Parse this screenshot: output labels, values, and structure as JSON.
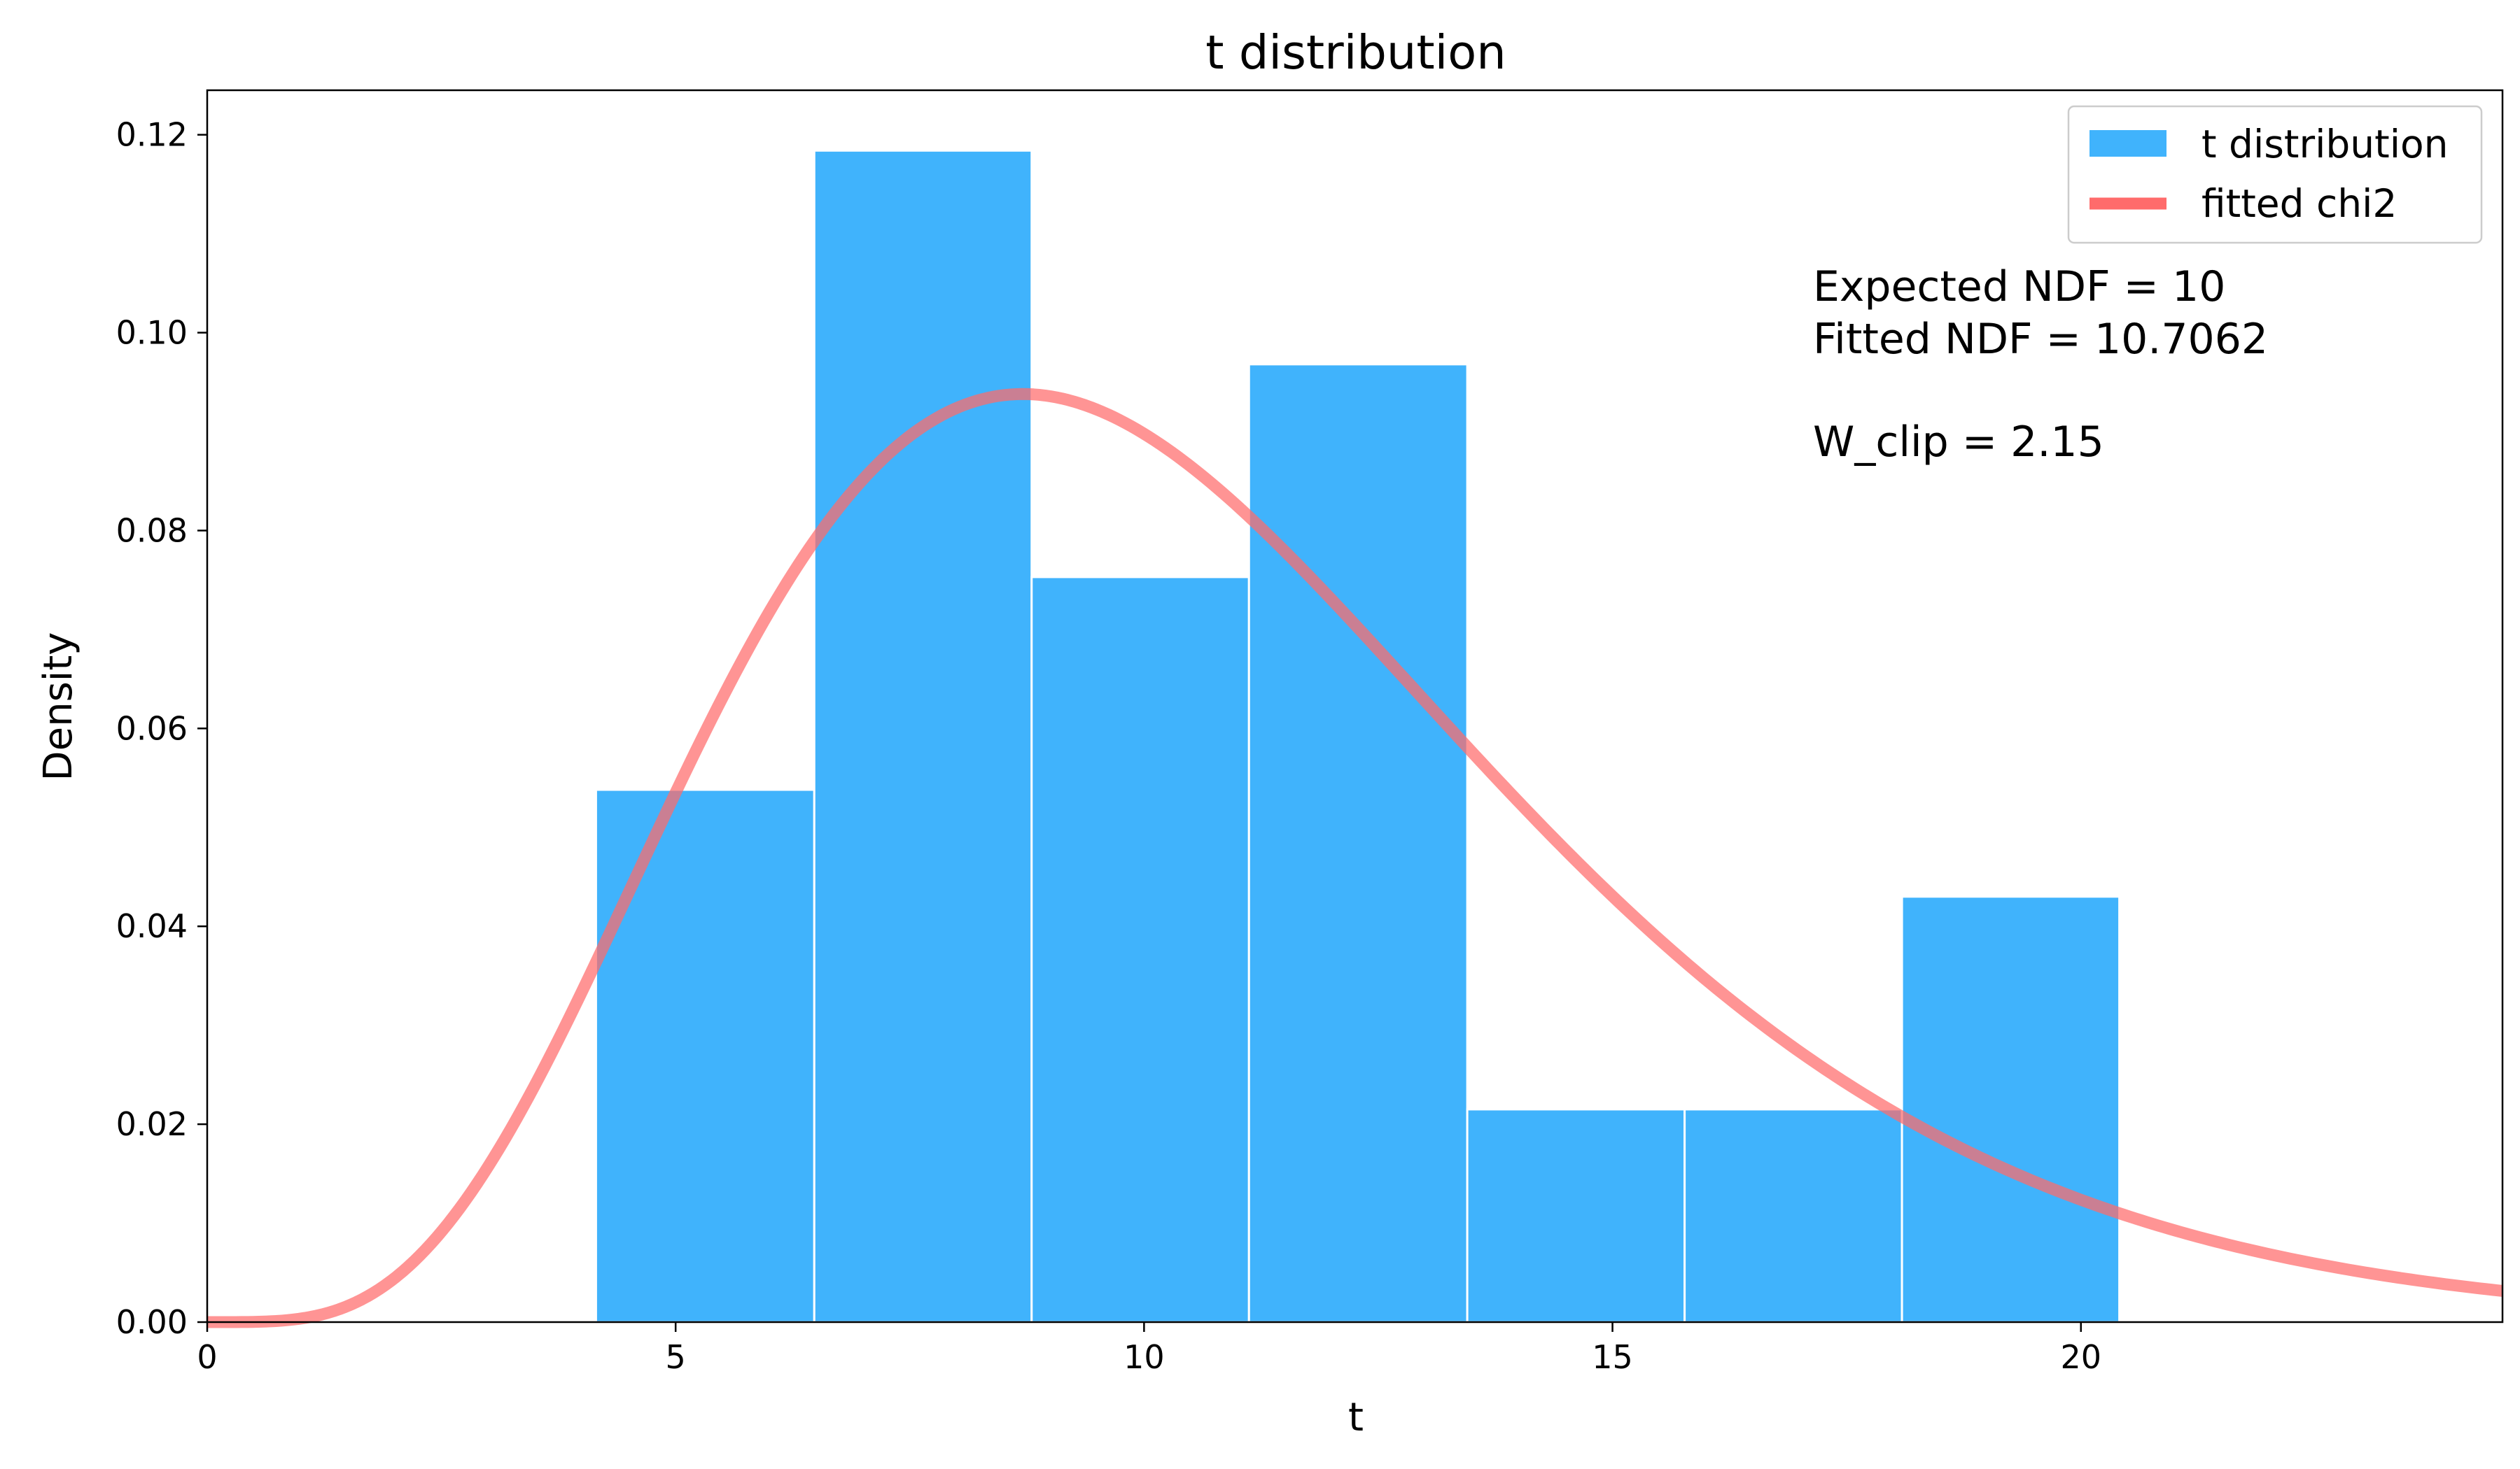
{
  "chart_data": {
    "type": "bar",
    "title": "t distribution",
    "xlabel": "t",
    "ylabel": "Density",
    "xlim": [
      0,
      24.5
    ],
    "ylim": [
      0,
      0.1245
    ],
    "xticks": [
      0,
      5,
      10,
      15,
      20
    ],
    "xtick_labels": [
      "0",
      "5",
      "10",
      "15",
      "20"
    ],
    "yticks": [
      0,
      0.02,
      0.04,
      0.06,
      0.08,
      0.1,
      0.12
    ],
    "ytick_labels": [
      "0.00",
      "0.02",
      "0.04",
      "0.06",
      "0.08",
      "0.10",
      "0.12"
    ],
    "grid": false,
    "legend_placement": "top-right",
    "series": [
      {
        "name": "t distribution",
        "kind": "histogram",
        "color": "#40b3fc",
        "edges": [
          4.15,
          6.48,
          8.8,
          11.12,
          13.45,
          15.77,
          18.09,
          20.41
        ],
        "values": [
          0.0538,
          0.1184,
          0.0753,
          0.0968,
          0.0215,
          0.0215,
          0.043
        ]
      },
      {
        "name": "fitted chi2",
        "kind": "line",
        "color": "#ff6b6b",
        "df": 10.7062
      }
    ],
    "annotations": [
      "Expected NDF = 10",
      "Fitted NDF = 10.7062",
      "",
      "W_clip = 2.15"
    ]
  }
}
